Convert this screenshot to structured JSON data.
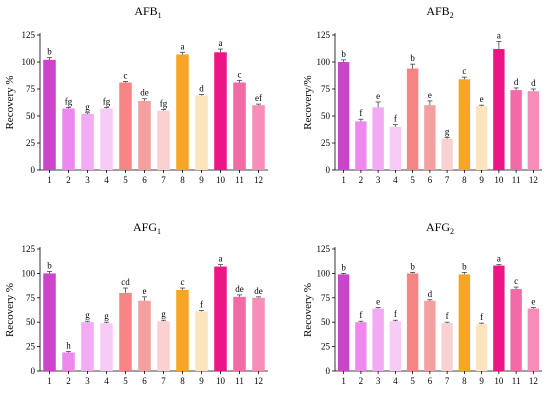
{
  "chart_data": [
    {
      "type": "bar",
      "title_main": "AFB",
      "title_sub": "1",
      "ylabel": "Recovery %",
      "ylim": [
        0,
        125
      ],
      "yticks": [
        "0",
        "25",
        "50",
        "75",
        "100",
        "125"
      ],
      "grid": false,
      "categories": [
        "1",
        "2",
        "3",
        "4",
        "5",
        "6",
        "7",
        "8",
        "9",
        "10",
        "11",
        "12"
      ],
      "values": [
        102,
        57,
        52,
        57,
        81,
        64,
        55,
        107,
        69,
        109,
        81,
        60
      ],
      "errors": [
        2,
        1,
        1,
        1,
        1,
        2,
        1,
        2,
        1,
        3,
        2,
        1
      ],
      "letters": [
        "b",
        "fg",
        "g",
        "fg",
        "c",
        "de",
        "fg",
        "a",
        "d",
        "a",
        "c",
        "ef"
      ],
      "colors": [
        "#cc44cc",
        "#ee88ee",
        "#f2aaf2",
        "#f6cbf6",
        "#f78585",
        "#f4a0a0",
        "#fbd0d0",
        "#f5a623",
        "#fce4bc",
        "#ec1586",
        "#f26aa6",
        "#f78db9"
      ]
    },
    {
      "type": "bar",
      "title_main": "AFB",
      "title_sub": "2",
      "ylabel": "Recovery/%",
      "ylim": [
        0,
        125
      ],
      "yticks": [
        "0",
        "25",
        "50",
        "75",
        "100",
        "125"
      ],
      "grid": false,
      "categories": [
        "1",
        "2",
        "3",
        "4",
        "5",
        "6",
        "7",
        "8",
        "9",
        "10",
        "11",
        "12"
      ],
      "values": [
        100,
        45,
        58,
        40,
        94,
        60,
        29,
        84,
        59,
        112,
        74,
        73
      ],
      "errors": [
        2,
        2,
        5,
        2,
        4,
        4,
        1,
        2,
        1,
        7,
        2,
        2
      ],
      "letters": [
        "b",
        "f",
        "e",
        "f",
        "b",
        "e",
        "g",
        "c",
        "e",
        "a",
        "d",
        "d"
      ],
      "colors": [
        "#cc44cc",
        "#ee88ee",
        "#f2aaf2",
        "#f6cbf6",
        "#f78585",
        "#f4a0a0",
        "#fbd0d0",
        "#f5a623",
        "#fce4bc",
        "#ec1586",
        "#f26aa6",
        "#f78db9"
      ]
    },
    {
      "type": "bar",
      "title_main": "AFG",
      "title_sub": "1",
      "ylabel": "Recovery %",
      "ylim": [
        0,
        125
      ],
      "yticks": [
        "0",
        "25",
        "50",
        "75",
        "100",
        "125"
      ],
      "grid": false,
      "categories": [
        "1",
        "2",
        "3",
        "4",
        "5",
        "6",
        "7",
        "8",
        "9",
        "10",
        "11",
        "12"
      ],
      "values": [
        100,
        19,
        50,
        49,
        80,
        72,
        51,
        83,
        61,
        107,
        76,
        75
      ],
      "errors": [
        2,
        1,
        1,
        1,
        5,
        4,
        1,
        2,
        1,
        2,
        2,
        1
      ],
      "letters": [
        "b",
        "h",
        "g",
        "g",
        "cd",
        "e",
        "g",
        "c",
        "f",
        "a",
        "de",
        "de"
      ],
      "colors": [
        "#cc44cc",
        "#ee88ee",
        "#f2aaf2",
        "#f6cbf6",
        "#f78585",
        "#f4a0a0",
        "#fbd0d0",
        "#f5a623",
        "#fce4bc",
        "#ec1586",
        "#f26aa6",
        "#f78db9"
      ]
    },
    {
      "type": "bar",
      "title_main": "AFG",
      "title_sub": "2",
      "ylabel": "Recovery %",
      "ylim": [
        0,
        125
      ],
      "yticks": [
        "0",
        "25",
        "50",
        "75",
        "100",
        "125"
      ],
      "grid": false,
      "categories": [
        "1",
        "2",
        "3",
        "4",
        "5",
        "6",
        "7",
        "8",
        "9",
        "10",
        "11",
        "12"
      ],
      "values": [
        99,
        50,
        64,
        51,
        100,
        72,
        49,
        99,
        48,
        108,
        84,
        64
      ],
      "errors": [
        1,
        1,
        1,
        1,
        1,
        1,
        1,
        2,
        1,
        1,
        2,
        1
      ],
      "letters": [
        "b",
        "f",
        "e",
        "f",
        "b",
        "d",
        "f",
        "b",
        "f",
        "a",
        "c",
        "e"
      ],
      "colors": [
        "#cc44cc",
        "#ee88ee",
        "#f2aaf2",
        "#f6cbf6",
        "#f78585",
        "#f4a0a0",
        "#fbd0d0",
        "#f5a623",
        "#fce4bc",
        "#ec1586",
        "#f26aa6",
        "#f78db9"
      ]
    }
  ]
}
